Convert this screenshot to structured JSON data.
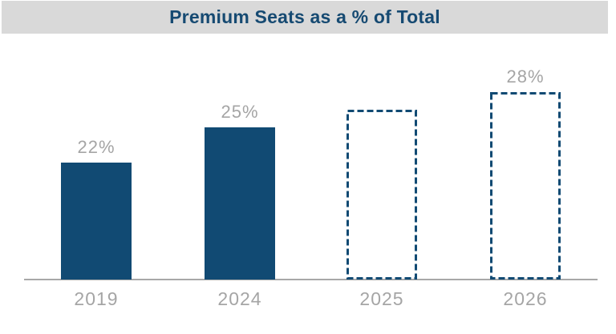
{
  "colors": {
    "navy": "#114A73",
    "title_text": "#164A72",
    "header_bg": "#D9D9D9",
    "label_gray": "#A5A5A5",
    "axis_gray": "#A8A8A8"
  },
  "chart_data": {
    "type": "bar",
    "title": "Premium Seats as a % of Total",
    "categories": [
      "2019",
      "2024",
      "2025",
      "2026"
    ],
    "series": [
      {
        "name": "Premium seats as % of total",
        "values": [
          22,
          25,
          26.5,
          28
        ]
      }
    ],
    "value_labels": [
      "22%",
      "25%",
      "",
      "28%"
    ],
    "bar_styles": [
      "solid",
      "solid",
      "dashed-outline",
      "dashed-outline"
    ],
    "xlabel": "",
    "ylabel": "",
    "grid": false,
    "legend_position": "none",
    "ylim_implied": [
      12,
      30
    ],
    "notes": "2025 bar has no printed value label; 26.5 estimated from bar height. 2025 and 2026 bars are dashed outlines (projected years)."
  }
}
